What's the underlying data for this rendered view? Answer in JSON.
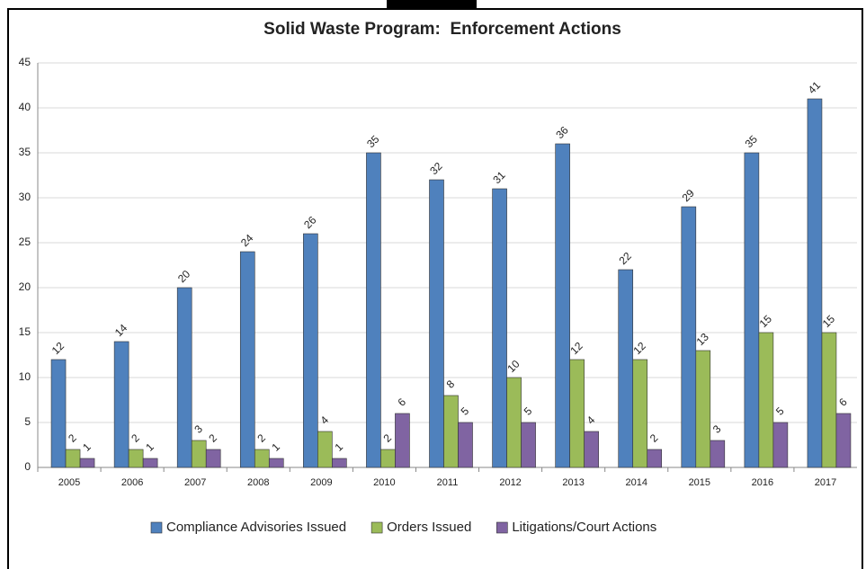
{
  "chart_data": {
    "type": "bar",
    "title": "Solid Waste Program:  Enforcement Actions",
    "categories": [
      "2005",
      "2006",
      "2007",
      "2008",
      "2009",
      "2010",
      "2011",
      "2012",
      "2013",
      "2014",
      "2015",
      "2016",
      "2017"
    ],
    "series": [
      {
        "name": "Compliance Advisories Issued",
        "color": "#4f81bd",
        "values": [
          12,
          14,
          20,
          24,
          26,
          35,
          32,
          31,
          36,
          22,
          29,
          35,
          41
        ]
      },
      {
        "name": "Orders Issued",
        "color": "#9bbb59",
        "values": [
          2,
          2,
          3,
          2,
          4,
          2,
          8,
          10,
          12,
          12,
          13,
          15,
          15
        ]
      },
      {
        "name": "Litigations/Court Actions",
        "color": "#8064a2",
        "values": [
          1,
          1,
          2,
          1,
          1,
          6,
          5,
          5,
          4,
          2,
          3,
          5,
          6
        ]
      }
    ],
    "ylim": [
      0,
      45
    ],
    "yticks": [
      0,
      5,
      10,
      15,
      20,
      25,
      30,
      35,
      40,
      45
    ],
    "grid": true,
    "legend": "bottom"
  }
}
